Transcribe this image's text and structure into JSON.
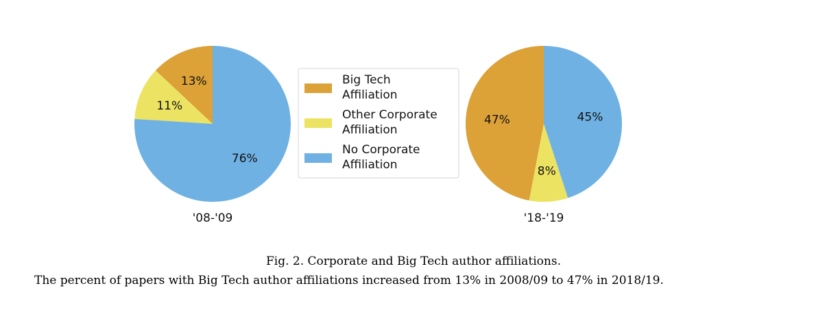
{
  "chart_data": {
    "type": "pie",
    "colors": {
      "Big Tech Affiliation": "#dca137",
      "Other Corporate Affiliation": "#ece363",
      "No Corporate Affiliation": "#6fb1e3"
    },
    "legend": {
      "placement": "center",
      "entries": [
        {
          "name": "Big Tech Affiliation",
          "lines": [
            "Big Tech",
            "Affiliation"
          ],
          "color": "#dca137"
        },
        {
          "name": "Other Corporate Affiliation",
          "lines": [
            "Other Corporate",
            "Affiliation"
          ],
          "color": "#ece363"
        },
        {
          "name": "No Corporate Affiliation",
          "lines": [
            "No Corporate",
            "Affiliation"
          ],
          "color": "#6fb1e3"
        }
      ]
    },
    "pies": [
      {
        "title": "'08-'09",
        "slices": [
          {
            "label": "Big Tech Affiliation",
            "value": 13,
            "text": "13%"
          },
          {
            "label": "Other Corporate Affiliation",
            "value": 11,
            "text": "11%"
          },
          {
            "label": "No Corporate Affiliation",
            "value": 76,
            "text": "76%"
          }
        ]
      },
      {
        "title": "'18-'19",
        "slices": [
          {
            "label": "Big Tech Affiliation",
            "value": 47,
            "text": "47%"
          },
          {
            "label": "Other Corporate Affiliation",
            "value": 8,
            "text": "8%"
          },
          {
            "label": "No Corporate Affiliation",
            "value": 45,
            "text": "45%"
          }
        ]
      }
    ]
  },
  "caption": {
    "title": "Fig. 2.  Corporate and Big Tech author affiliations.",
    "text": "The percent of papers with Big Tech author affiliations increased from 13% in 2008/09 to 47% in 2018/19."
  }
}
